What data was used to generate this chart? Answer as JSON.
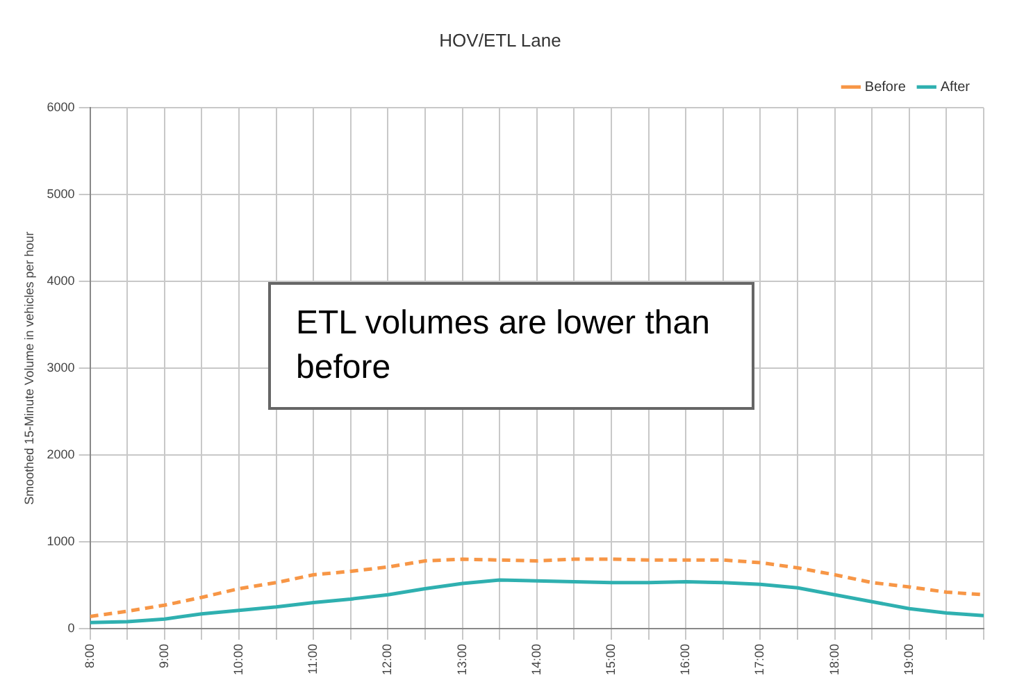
{
  "chart_data": {
    "type": "line",
    "title": "HOV/ETL Lane",
    "ylabel": "Smoothed 15-Minute Volume in vehicles per hour",
    "x": [
      8,
      8.5,
      9,
      9.5,
      10,
      10.5,
      11,
      11.5,
      12,
      12.5,
      13,
      13.5,
      14,
      14.5,
      15,
      15.5,
      16,
      16.5,
      17,
      17.5,
      18,
      18.5,
      19,
      19.5,
      20
    ],
    "series": [
      {
        "name": "Before",
        "color": "#f79646",
        "line_style": "dashed",
        "values": [
          140,
          200,
          270,
          360,
          460,
          530,
          620,
          660,
          710,
          780,
          800,
          790,
          780,
          800,
          800,
          790,
          790,
          790,
          760,
          700,
          620,
          530,
          480,
          420,
          390
        ]
      },
      {
        "name": "After",
        "color": "#2fb0b0",
        "line_style": "solid",
        "values": [
          70,
          80,
          110,
          170,
          210,
          250,
          300,
          340,
          390,
          460,
          520,
          560,
          550,
          540,
          530,
          530,
          540,
          530,
          510,
          470,
          390,
          310,
          230,
          180,
          150
        ]
      }
    ],
    "xlim": [
      8,
      20
    ],
    "xticks": [
      {
        "value": 8,
        "label": "8:00"
      },
      {
        "value": 8.5,
        "label": null
      },
      {
        "value": 9,
        "label": "9:00"
      },
      {
        "value": 9.5,
        "label": null
      },
      {
        "value": 10,
        "label": "10:00"
      },
      {
        "value": 10.5,
        "label": null
      },
      {
        "value": 11,
        "label": "11:00"
      },
      {
        "value": 11.5,
        "label": null
      },
      {
        "value": 12,
        "label": "12:00"
      },
      {
        "value": 12.5,
        "label": null
      },
      {
        "value": 13,
        "label": "13:00"
      },
      {
        "value": 13.5,
        "label": null
      },
      {
        "value": 14,
        "label": "14:00"
      },
      {
        "value": 14.5,
        "label": null
      },
      {
        "value": 15,
        "label": "15:00"
      },
      {
        "value": 15.5,
        "label": null
      },
      {
        "value": 16,
        "label": "16:00"
      },
      {
        "value": 16.5,
        "label": null
      },
      {
        "value": 17,
        "label": "17:00"
      },
      {
        "value": 17.5,
        "label": null
      },
      {
        "value": 18,
        "label": "18:00"
      },
      {
        "value": 18.5,
        "label": null
      },
      {
        "value": 19,
        "label": "19:00"
      },
      {
        "value": 19.5,
        "label": null
      },
      {
        "value": 20,
        "label": null
      }
    ],
    "ylim": [
      0,
      6000
    ],
    "yticks": [
      0,
      1000,
      2000,
      3000,
      4000,
      5000,
      6000
    ],
    "grid": true,
    "legend": "top right",
    "marker": "none",
    "annotations": [
      "ETL volumes are lower than before"
    ]
  }
}
